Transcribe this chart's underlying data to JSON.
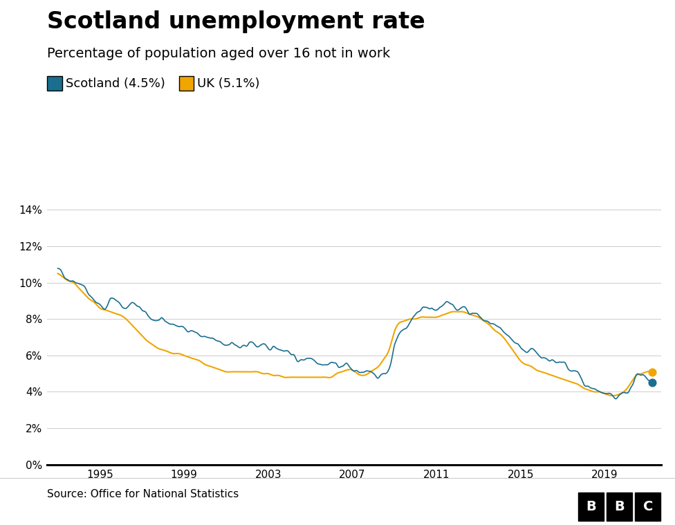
{
  "title": "Scotland unemployment rate",
  "subtitle": "Percentage of population aged over 16 not in work",
  "legend_labels": [
    "Scotland (4.5%)",
    "UK (5.1%)"
  ],
  "scotland_color": "#1a6e8e",
  "uk_color": "#f0a500",
  "background_color": "#ffffff",
  "source_text": "Source: Office for National Statistics",
  "ytick_labels": [
    "0%",
    "2%",
    "4%",
    "6%",
    "8%",
    "10%",
    "12%",
    "14%"
  ],
  "ytick_values": [
    0,
    2,
    4,
    6,
    8,
    10,
    12,
    14
  ],
  "xtick_years": [
    1995,
    1999,
    2003,
    2007,
    2011,
    2015,
    2019
  ],
  "x_start_year": 1992.5,
  "x_end_year": 2021.7,
  "scotland_data": [
    [
      1993.0,
      10.7
    ],
    [
      1993.25,
      10.5
    ],
    [
      1993.5,
      10.2
    ],
    [
      1993.75,
      10.1
    ],
    [
      1994.0,
      10.0
    ],
    [
      1994.25,
      9.8
    ],
    [
      1994.5,
      9.3
    ],
    [
      1994.75,
      9.0
    ],
    [
      1995.0,
      8.8
    ],
    [
      1995.25,
      8.6
    ],
    [
      1995.5,
      9.1
    ],
    [
      1995.75,
      9.0
    ],
    [
      1996.0,
      8.8
    ],
    [
      1996.25,
      8.6
    ],
    [
      1996.5,
      8.9
    ],
    [
      1996.75,
      8.7
    ],
    [
      1997.0,
      8.5
    ],
    [
      1997.25,
      8.2
    ],
    [
      1997.5,
      8.0
    ],
    [
      1997.75,
      7.9
    ],
    [
      1998.0,
      7.9
    ],
    [
      1998.25,
      7.8
    ],
    [
      1998.5,
      7.7
    ],
    [
      1998.75,
      7.6
    ],
    [
      1999.0,
      7.5
    ],
    [
      1999.25,
      7.4
    ],
    [
      1999.5,
      7.3
    ],
    [
      1999.75,
      7.1
    ],
    [
      2000.0,
      7.0
    ],
    [
      2000.25,
      6.9
    ],
    [
      2000.5,
      6.8
    ],
    [
      2000.75,
      6.7
    ],
    [
      2001.0,
      6.6
    ],
    [
      2001.25,
      6.7
    ],
    [
      2001.5,
      6.5
    ],
    [
      2001.75,
      6.4
    ],
    [
      2002.0,
      6.6
    ],
    [
      2002.25,
      6.7
    ],
    [
      2002.5,
      6.5
    ],
    [
      2002.75,
      6.6
    ],
    [
      2003.0,
      6.3
    ],
    [
      2003.25,
      6.5
    ],
    [
      2003.5,
      6.4
    ],
    [
      2003.75,
      6.3
    ],
    [
      2004.0,
      6.2
    ],
    [
      2004.25,
      5.9
    ],
    [
      2004.5,
      5.7
    ],
    [
      2004.75,
      5.8
    ],
    [
      2005.0,
      5.9
    ],
    [
      2005.25,
      5.7
    ],
    [
      2005.5,
      5.6
    ],
    [
      2005.75,
      5.5
    ],
    [
      2006.0,
      5.6
    ],
    [
      2006.25,
      5.5
    ],
    [
      2006.5,
      5.4
    ],
    [
      2006.75,
      5.5
    ],
    [
      2007.0,
      5.2
    ],
    [
      2007.25,
      5.1
    ],
    [
      2007.5,
      5.0
    ],
    [
      2007.75,
      5.1
    ],
    [
      2008.0,
      5.1
    ],
    [
      2008.25,
      4.8
    ],
    [
      2008.5,
      5.0
    ],
    [
      2008.75,
      5.3
    ],
    [
      2009.0,
      6.5
    ],
    [
      2009.25,
      7.2
    ],
    [
      2009.5,
      7.5
    ],
    [
      2009.75,
      7.8
    ],
    [
      2010.0,
      8.3
    ],
    [
      2010.25,
      8.5
    ],
    [
      2010.5,
      8.7
    ],
    [
      2010.75,
      8.6
    ],
    [
      2011.0,
      8.4
    ],
    [
      2011.25,
      8.7
    ],
    [
      2011.5,
      8.9
    ],
    [
      2011.75,
      8.8
    ],
    [
      2012.0,
      8.5
    ],
    [
      2012.25,
      8.6
    ],
    [
      2012.5,
      8.4
    ],
    [
      2012.75,
      8.3
    ],
    [
      2013.0,
      8.2
    ],
    [
      2013.25,
      7.9
    ],
    [
      2013.5,
      7.8
    ],
    [
      2013.75,
      7.6
    ],
    [
      2014.0,
      7.4
    ],
    [
      2014.25,
      7.2
    ],
    [
      2014.5,
      6.9
    ],
    [
      2014.75,
      6.7
    ],
    [
      2015.0,
      6.5
    ],
    [
      2015.25,
      6.2
    ],
    [
      2015.5,
      6.3
    ],
    [
      2015.75,
      6.1
    ],
    [
      2016.0,
      6.0
    ],
    [
      2016.25,
      5.8
    ],
    [
      2016.5,
      5.7
    ],
    [
      2016.75,
      5.5
    ],
    [
      2017.0,
      5.6
    ],
    [
      2017.25,
      5.3
    ],
    [
      2017.5,
      5.1
    ],
    [
      2017.75,
      5.0
    ],
    [
      2018.0,
      4.5
    ],
    [
      2018.25,
      4.3
    ],
    [
      2018.5,
      4.1
    ],
    [
      2018.75,
      4.0
    ],
    [
      2019.0,
      3.9
    ],
    [
      2019.25,
      3.8
    ],
    [
      2019.5,
      3.6
    ],
    [
      2019.75,
      3.8
    ],
    [
      2020.0,
      4.0
    ],
    [
      2020.25,
      4.2
    ],
    [
      2020.5,
      4.8
    ],
    [
      2020.75,
      5.0
    ],
    [
      2021.0,
      4.8
    ],
    [
      2021.25,
      4.5
    ]
  ],
  "uk_data": [
    [
      1993.0,
      10.5
    ],
    [
      1993.25,
      10.3
    ],
    [
      1993.5,
      10.1
    ],
    [
      1993.75,
      10.0
    ],
    [
      1994.0,
      9.7
    ],
    [
      1994.25,
      9.4
    ],
    [
      1994.5,
      9.1
    ],
    [
      1994.75,
      8.9
    ],
    [
      1995.0,
      8.6
    ],
    [
      1995.25,
      8.5
    ],
    [
      1995.5,
      8.4
    ],
    [
      1995.75,
      8.3
    ],
    [
      1996.0,
      8.2
    ],
    [
      1996.25,
      8.0
    ],
    [
      1996.5,
      7.7
    ],
    [
      1996.75,
      7.4
    ],
    [
      1997.0,
      7.1
    ],
    [
      1997.25,
      6.8
    ],
    [
      1997.5,
      6.6
    ],
    [
      1997.75,
      6.4
    ],
    [
      1998.0,
      6.3
    ],
    [
      1998.25,
      6.2
    ],
    [
      1998.5,
      6.1
    ],
    [
      1998.75,
      6.1
    ],
    [
      1999.0,
      6.0
    ],
    [
      1999.25,
      5.9
    ],
    [
      1999.5,
      5.8
    ],
    [
      1999.75,
      5.7
    ],
    [
      2000.0,
      5.5
    ],
    [
      2000.25,
      5.4
    ],
    [
      2000.5,
      5.3
    ],
    [
      2000.75,
      5.2
    ],
    [
      2001.0,
      5.1
    ],
    [
      2001.25,
      5.1
    ],
    [
      2001.5,
      5.1
    ],
    [
      2001.75,
      5.1
    ],
    [
      2002.0,
      5.1
    ],
    [
      2002.25,
      5.1
    ],
    [
      2002.5,
      5.1
    ],
    [
      2002.75,
      5.0
    ],
    [
      2003.0,
      5.0
    ],
    [
      2003.25,
      4.9
    ],
    [
      2003.5,
      4.9
    ],
    [
      2003.75,
      4.8
    ],
    [
      2004.0,
      4.8
    ],
    [
      2004.25,
      4.8
    ],
    [
      2004.5,
      4.8
    ],
    [
      2004.75,
      4.8
    ],
    [
      2005.0,
      4.8
    ],
    [
      2005.25,
      4.8
    ],
    [
      2005.5,
      4.8
    ],
    [
      2005.75,
      4.8
    ],
    [
      2006.0,
      4.8
    ],
    [
      2006.25,
      5.0
    ],
    [
      2006.5,
      5.1
    ],
    [
      2006.75,
      5.2
    ],
    [
      2007.0,
      5.2
    ],
    [
      2007.25,
      5.0
    ],
    [
      2007.5,
      4.9
    ],
    [
      2007.75,
      5.0
    ],
    [
      2008.0,
      5.2
    ],
    [
      2008.25,
      5.4
    ],
    [
      2008.5,
      5.8
    ],
    [
      2008.75,
      6.3
    ],
    [
      2009.0,
      7.3
    ],
    [
      2009.25,
      7.8
    ],
    [
      2009.5,
      7.9
    ],
    [
      2009.75,
      8.0
    ],
    [
      2010.0,
      8.0
    ],
    [
      2010.25,
      8.1
    ],
    [
      2010.5,
      8.1
    ],
    [
      2010.75,
      8.1
    ],
    [
      2011.0,
      8.1
    ],
    [
      2011.25,
      8.2
    ],
    [
      2011.5,
      8.3
    ],
    [
      2011.75,
      8.4
    ],
    [
      2012.0,
      8.4
    ],
    [
      2012.25,
      8.4
    ],
    [
      2012.5,
      8.3
    ],
    [
      2012.75,
      8.2
    ],
    [
      2013.0,
      8.1
    ],
    [
      2013.25,
      7.9
    ],
    [
      2013.5,
      7.7
    ],
    [
      2013.75,
      7.4
    ],
    [
      2014.0,
      7.2
    ],
    [
      2014.25,
      6.9
    ],
    [
      2014.5,
      6.5
    ],
    [
      2014.75,
      6.1
    ],
    [
      2015.0,
      5.7
    ],
    [
      2015.25,
      5.5
    ],
    [
      2015.5,
      5.4
    ],
    [
      2015.75,
      5.2
    ],
    [
      2016.0,
      5.1
    ],
    [
      2016.25,
      5.0
    ],
    [
      2016.5,
      4.9
    ],
    [
      2016.75,
      4.8
    ],
    [
      2017.0,
      4.7
    ],
    [
      2017.25,
      4.6
    ],
    [
      2017.5,
      4.5
    ],
    [
      2017.75,
      4.4
    ],
    [
      2018.0,
      4.2
    ],
    [
      2018.25,
      4.1
    ],
    [
      2018.5,
      4.0
    ],
    [
      2018.75,
      4.0
    ],
    [
      2019.0,
      3.9
    ],
    [
      2019.25,
      3.8
    ],
    [
      2019.5,
      3.8
    ],
    [
      2019.75,
      3.9
    ],
    [
      2020.0,
      4.1
    ],
    [
      2020.25,
      4.5
    ],
    [
      2020.5,
      4.9
    ],
    [
      2020.75,
      5.0
    ],
    [
      2021.0,
      5.1
    ],
    [
      2021.25,
      5.1
    ]
  ]
}
